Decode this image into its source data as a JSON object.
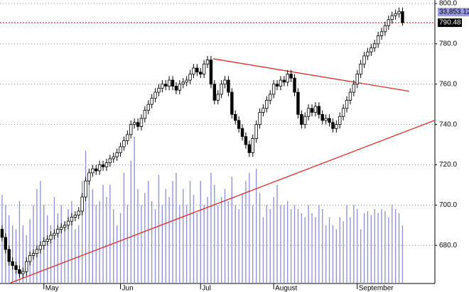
{
  "chart_data": {
    "type": "candlestick",
    "categories": [
      null,
      null,
      null,
      null,
      null,
      null,
      null,
      null,
      null,
      null,
      null,
      null,
      "May",
      null,
      null,
      null,
      null,
      null,
      null,
      null,
      null,
      null,
      null,
      null,
      null,
      null,
      null,
      null,
      null,
      null,
      null,
      null,
      null,
      null,
      "Jun",
      null,
      null,
      null,
      null,
      null,
      null,
      null,
      null,
      null,
      null,
      null,
      null,
      null,
      null,
      null,
      null,
      null,
      null,
      null,
      null,
      null,
      null,
      "Jul",
      null,
      null,
      null,
      null,
      null,
      null,
      null,
      null,
      null,
      null,
      null,
      null,
      null,
      null,
      null,
      null,
      null,
      null,
      null,
      null,
      "August",
      null,
      null,
      null,
      null,
      null,
      null,
      null,
      null,
      null,
      null,
      null,
      null,
      null,
      null,
      null,
      null,
      null,
      null,
      null,
      null,
      null,
      null,
      null,
      "September",
      null,
      null,
      null,
      null,
      null,
      null,
      null,
      null,
      null,
      null,
      null,
      null,
      null
    ],
    "open": [
      688,
      684,
      678,
      672,
      670,
      668,
      666,
      667,
      672,
      675,
      676,
      678,
      680,
      682,
      683,
      685,
      686,
      688,
      689,
      690,
      692,
      694,
      695,
      697,
      704,
      712,
      716,
      718,
      717,
      720,
      719,
      721,
      723,
      724,
      726,
      729,
      732,
      735,
      740,
      741,
      739,
      743,
      747,
      750,
      753,
      756,
      758,
      760,
      759,
      762,
      759,
      757,
      760,
      761,
      762,
      765,
      768,
      766,
      765,
      770,
      772,
      760,
      752,
      755,
      760,
      762,
      756,
      745,
      742,
      738,
      734,
      730,
      726,
      733,
      740,
      746,
      748,
      752,
      755,
      760,
      759,
      762,
      761,
      765,
      763,
      756,
      745,
      740,
      744,
      748,
      746,
      749,
      745,
      742,
      743,
      741,
      738,
      740,
      744,
      748,
      752,
      756,
      760,
      765,
      770,
      774,
      776,
      778,
      780,
      784,
      786,
      789,
      792,
      794,
      795,
      796
    ],
    "high": [
      690,
      686,
      680,
      674,
      672,
      670,
      669,
      674,
      677,
      678,
      680,
      682,
      684,
      685,
      687,
      688,
      690,
      691,
      692,
      694,
      696,
      697,
      699,
      706,
      714,
      718,
      720,
      720,
      722,
      722,
      723,
      725,
      726,
      728,
      731,
      734,
      737,
      742,
      743,
      743,
      745,
      749,
      752,
      755,
      758,
      760,
      762,
      762,
      764,
      764,
      761,
      762,
      763,
      764,
      767,
      770,
      770,
      768,
      772,
      774,
      774,
      762,
      757,
      762,
      764,
      764,
      758,
      747,
      744,
      740,
      736,
      732,
      735,
      742,
      748,
      750,
      754,
      757,
      762,
      762,
      764,
      764,
      767,
      767,
      765,
      758,
      747,
      746,
      750,
      750,
      751,
      751,
      747,
      745,
      745,
      743,
      742,
      746,
      750,
      754,
      758,
      762,
      767,
      772,
      776,
      778,
      780,
      782,
      786,
      788,
      791,
      794,
      796,
      797,
      798,
      798
    ],
    "low": [
      682,
      676,
      670,
      668,
      666,
      664,
      664,
      665,
      670,
      673,
      674,
      676,
      678,
      680,
      681,
      683,
      684,
      686,
      687,
      688,
      690,
      692,
      693,
      695,
      702,
      710,
      714,
      715,
      715,
      717,
      717,
      719,
      721,
      722,
      724,
      727,
      730,
      733,
      738,
      737,
      737,
      741,
      745,
      748,
      751,
      754,
      756,
      757,
      757,
      757,
      755,
      755,
      758,
      759,
      760,
      763,
      764,
      763,
      763,
      768,
      758,
      750,
      750,
      753,
      758,
      754,
      743,
      740,
      736,
      732,
      728,
      724,
      724,
      731,
      738,
      744,
      746,
      750,
      753,
      757,
      757,
      759,
      759,
      761,
      754,
      743,
      738,
      738,
      742,
      744,
      744,
      743,
      740,
      740,
      739,
      736,
      736,
      738,
      742,
      746,
      750,
      754,
      758,
      763,
      768,
      772,
      774,
      776,
      778,
      782,
      784,
      787,
      790,
      792,
      793,
      789
    ],
    "close": [
      684,
      678,
      672,
      670,
      668,
      666,
      667,
      672,
      675,
      676,
      678,
      680,
      682,
      683,
      685,
      686,
      688,
      689,
      690,
      692,
      694,
      695,
      697,
      704,
      712,
      716,
      718,
      717,
      720,
      719,
      721,
      723,
      724,
      726,
      729,
      732,
      735,
      740,
      741,
      739,
      743,
      747,
      750,
      753,
      756,
      758,
      760,
      759,
      762,
      759,
      757,
      760,
      761,
      762,
      765,
      768,
      766,
      765,
      770,
      772,
      760,
      752,
      755,
      760,
      762,
      756,
      745,
      742,
      738,
      734,
      730,
      726,
      733,
      740,
      746,
      748,
      752,
      755,
      760,
      759,
      762,
      761,
      765,
      763,
      756,
      745,
      740,
      744,
      748,
      746,
      749,
      745,
      742,
      743,
      741,
      738,
      740,
      744,
      748,
      752,
      756,
      760,
      765,
      770,
      774,
      776,
      778,
      780,
      784,
      786,
      789,
      792,
      794,
      795,
      796,
      790.48
    ],
    "volume": [
      705,
      700,
      695,
      690,
      688,
      702,
      690,
      685,
      693,
      700,
      708,
      712,
      700,
      695,
      690,
      704,
      696,
      700,
      692,
      698,
      702,
      688,
      690,
      712,
      727,
      718,
      708,
      700,
      702,
      710,
      704,
      710,
      698,
      690,
      696,
      716,
      700,
      722,
      734,
      708,
      700,
      706,
      712,
      702,
      698,
      715,
      700,
      708,
      704,
      712,
      716,
      700,
      708,
      700,
      712,
      705,
      696,
      712,
      700,
      704,
      716,
      710,
      700,
      704,
      708,
      702,
      714,
      700,
      698,
      706,
      712,
      716,
      700,
      718,
      706,
      694,
      700,
      698,
      704,
      710,
      700,
      700,
      702,
      698,
      700,
      698,
      696,
      694,
      700,
      696,
      694,
      700,
      698,
      690,
      694,
      690,
      688,
      694,
      692,
      700,
      694,
      700,
      698,
      688,
      696,
      697,
      695,
      698,
      696,
      698,
      697,
      694,
      700,
      698,
      696,
      690
    ],
    "volume_color": "#8c8cd8",
    "up_color": "#ffffff",
    "down_color": "#000000",
    "trendlines": [
      {
        "x": [
          60.6,
          116.9
        ],
        "y": [
          772.6,
          756.5
        ],
        "color": "#e31a1a"
      },
      {
        "x": [
          2.4,
          124.3
        ],
        "y": [
          661.4,
          742.1
        ],
        "color": "#e31a1a"
      }
    ],
    "last_line_color": "#cc0000",
    "info_label": "33,853.12",
    "xlim": [
      -0.6,
      124.3
    ],
    "ylim": [
      661.1,
      801.75
    ],
    "yticks": [
      {
        "value": 680,
        "label": "680.0"
      },
      {
        "value": 700,
        "label": "700.0"
      },
      {
        "value": 720,
        "label": "720.0"
      },
      {
        "value": 740,
        "label": "740.0"
      },
      {
        "value": 760,
        "label": "760.0"
      },
      {
        "value": 780,
        "label": "780.0"
      },
      {
        "value": 800,
        "label": "800.0"
      }
    ],
    "grid": true
  }
}
